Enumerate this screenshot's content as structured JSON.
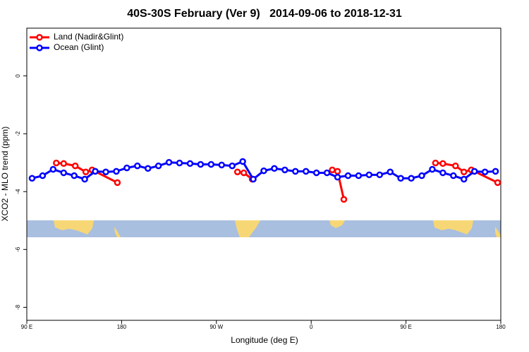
{
  "chart_data": {
    "type": "line",
    "title": "40S-30S February (Ver 9)   2014-09-06 to 2018-12-31",
    "xlabel": "Longitude (deg E)",
    "ylabel": "XCO2 - MLO trend (ppm)",
    "xlim": [
      90,
      540
    ],
    "ylim": [
      -8.45,
      1.65
    ],
    "xticks": [
      {
        "value": 90,
        "label": "90 E"
      },
      {
        "value": 180,
        "label": "180"
      },
      {
        "value": 270,
        "label": "90 W"
      },
      {
        "value": 360,
        "label": "0"
      },
      {
        "value": 450,
        "label": "90 E"
      },
      {
        "value": 540,
        "label": "180"
      }
    ],
    "yticks": [
      0,
      -2,
      -4,
      -6,
      -8
    ],
    "legend": "top-left",
    "series": [
      {
        "name": "Land (Nadir&Glint)",
        "color": "#ff0000",
        "x": [
          118,
          125,
          136,
          146,
          152,
          176,
          null,
          290,
          296,
          304,
          null,
          380,
          385,
          391,
          null,
          478,
          485,
          497,
          505,
          512,
          537
        ],
        "values": [
          -3.01,
          -3.03,
          -3.11,
          -3.32,
          -3.25,
          -3.69,
          null,
          -3.32,
          -3.35,
          -3.57,
          null,
          -3.25,
          -3.3,
          -4.27,
          null,
          -3.01,
          -3.03,
          -3.11,
          -3.32,
          -3.25,
          -3.69
        ]
      },
      {
        "name": "Ocean (Glint)",
        "color": "#0000ff",
        "x": [
          95,
          105,
          115,
          125,
          135,
          145,
          155,
          165,
          175,
          185,
          195,
          205,
          215,
          225,
          235,
          245,
          255,
          265,
          275,
          285,
          295,
          305,
          315,
          325,
          335,
          345,
          355,
          365,
          375,
          385,
          395,
          405,
          415,
          425,
          435,
          445,
          455,
          465,
          475,
          485,
          495,
          505,
          515,
          525,
          535
        ],
        "values": [
          -3.54,
          -3.45,
          -3.23,
          -3.35,
          -3.45,
          -3.57,
          -3.3,
          -3.32,
          -3.3,
          -3.18,
          -3.11,
          -3.2,
          -3.11,
          -2.99,
          -3.01,
          -3.03,
          -3.06,
          -3.06,
          -3.08,
          -3.11,
          -2.96,
          -3.57,
          -3.28,
          -3.2,
          -3.25,
          -3.3,
          -3.3,
          -3.35,
          -3.35,
          -3.5,
          -3.45,
          -3.45,
          -3.42,
          -3.42,
          -3.32,
          -3.54,
          -3.54,
          -3.45,
          -3.23,
          -3.35,
          -3.45,
          -3.57,
          -3.3,
          -3.32,
          -3.3
        ]
      }
    ]
  }
}
